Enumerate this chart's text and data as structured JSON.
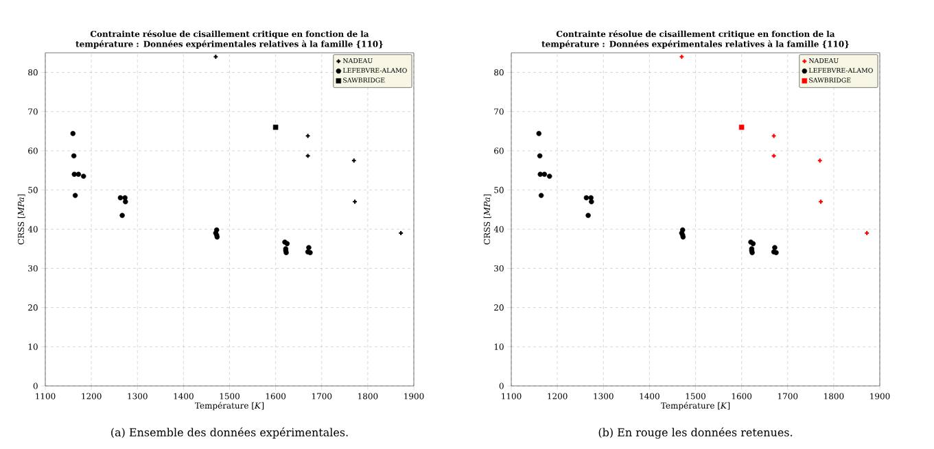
{
  "chart_data": [
    {
      "type": "scatter",
      "title": "Contrainte résolue de cisaillement critique en fonction de la température : Données expérimentales relatives à la famille {110}",
      "xlabel": "Température [*K*]",
      "ylabel": "CRSS [*MPa*]",
      "annotations": [
        "(a) Ensemble des données expérimentales."
      ],
      "xlim": [
        1100,
        1900
      ],
      "ylim": [
        0,
        85
      ],
      "xticks": [
        1100,
        1200,
        1300,
        1400,
        1500,
        1600,
        1700,
        1800,
        1900
      ],
      "yticks": [
        0,
        10,
        20,
        30,
        40,
        50,
        60,
        70,
        80
      ],
      "grid": true,
      "legend": "top right",
      "series": [
        {
          "name": "NADEAU",
          "color": "#000000",
          "marker": "cross",
          "x": [
            1470,
            1670,
            1670,
            1770,
            1772,
            1872
          ],
          "values": [
            84,
            63.8,
            58.7,
            57.5,
            47,
            39
          ]
        },
        {
          "name": "LEFEBVRE-ALAMO",
          "color": "#000000",
          "marker": "circle",
          "x": [
            1160,
            1162,
            1163,
            1172,
            1183,
            1165,
            1263,
            1273,
            1274,
            1267,
            1472,
            1470,
            1472,
            1473,
            1620,
            1625,
            1622,
            1622,
            1623,
            1672,
            1670,
            1675
          ],
          "values": [
            64.4,
            58.7,
            54,
            54,
            53.5,
            48.6,
            48,
            48,
            47,
            43.5,
            39.8,
            39,
            38.5,
            38,
            36.7,
            36.3,
            35,
            34.5,
            34,
            35.3,
            34.2,
            34
          ]
        },
        {
          "name": "SAWBRIDGE",
          "color": "#000000",
          "marker": "square",
          "x": [
            1600
          ],
          "values": [
            66
          ]
        }
      ]
    },
    {
      "type": "scatter",
      "title": "Contrainte résolue de cisaillement critique en fonction de la température : Données expérimentales relatives à la famille {110}",
      "xlabel": "Température [*K*]",
      "ylabel": "CRSS [*MPa*]",
      "annotations": [
        "(b) En rouge les données retenues."
      ],
      "xlim": [
        1100,
        1900
      ],
      "ylim": [
        0,
        85
      ],
      "xticks": [
        1100,
        1200,
        1300,
        1400,
        1500,
        1600,
        1700,
        1800,
        1900
      ],
      "yticks": [
        0,
        10,
        20,
        30,
        40,
        50,
        60,
        70,
        80
      ],
      "grid": true,
      "legend": "top right",
      "series": [
        {
          "name": "NADEAU",
          "color": "#ff0000",
          "marker": "cross",
          "x": [
            1470,
            1670,
            1670,
            1770,
            1772,
            1872
          ],
          "values": [
            84,
            63.8,
            58.7,
            57.5,
            47,
            39
          ]
        },
        {
          "name": "LEFEBVRE-ALAMO",
          "color": "#000000",
          "marker": "circle",
          "x": [
            1160,
            1162,
            1163,
            1172,
            1183,
            1165,
            1263,
            1273,
            1274,
            1267,
            1472,
            1470,
            1472,
            1473,
            1620,
            1625,
            1622,
            1622,
            1623,
            1672,
            1670,
            1675
          ],
          "values": [
            64.4,
            58.7,
            54,
            54,
            53.5,
            48.6,
            48,
            48,
            47,
            43.5,
            39.8,
            39,
            38.5,
            38,
            36.7,
            36.3,
            35,
            34.5,
            34,
            35.3,
            34.2,
            34
          ]
        },
        {
          "name": "SAWBRIDGE",
          "color": "#ff0000",
          "marker": "square",
          "x": [
            1600
          ],
          "values": [
            66
          ]
        }
      ]
    }
  ]
}
